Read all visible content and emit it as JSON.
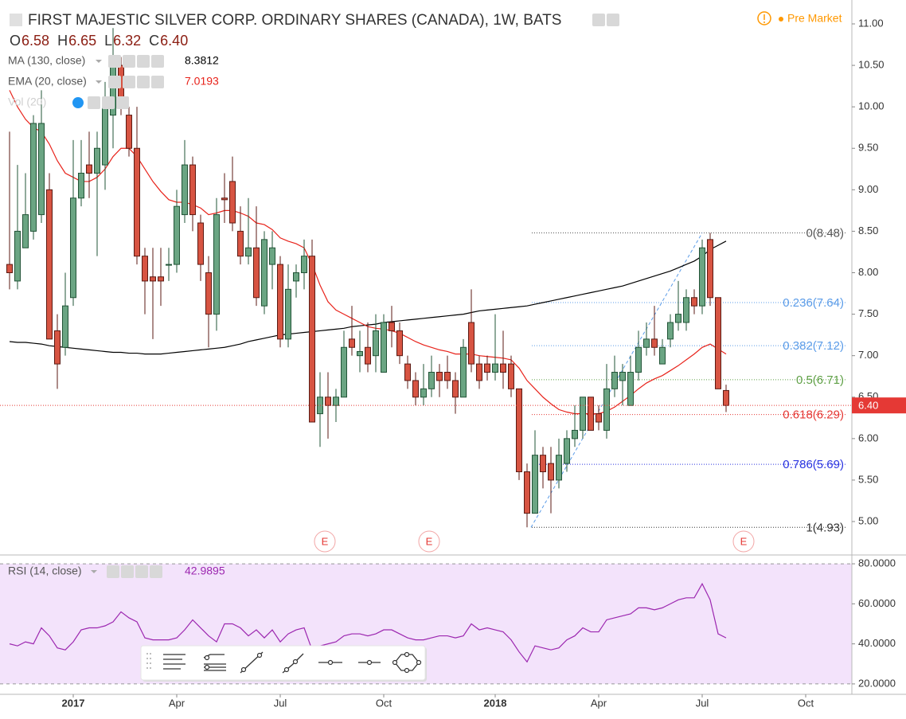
{
  "chart_data": [
    {
      "type": "candlestick",
      "title": "FIRST MAJESTIC SILVER CORP. ORDINARY SHARES (CANADA), 1W, BATS",
      "status": "Pre Market",
      "ohlc_header": [
        {
          "key": "O",
          "value": "6.58"
        },
        {
          "key": "H",
          "value": "6.65"
        },
        {
          "key": "L",
          "value": "6.32"
        },
        {
          "key": "C",
          "value": "6.40"
        }
      ],
      "volume_label": "Vol (20)",
      "earnings": [
        "E",
        "E",
        "E"
      ],
      "up_color": "#6ba583",
      "down_color": "#d75442",
      "categories": [
        null,
        null,
        null,
        null,
        null,
        null,
        null,
        null,
        "2017",
        null,
        null,
        null,
        null,
        null,
        null,
        null,
        null,
        null,
        null,
        null,
        null,
        "Apr",
        null,
        null,
        null,
        null,
        null,
        null,
        null,
        null,
        null,
        null,
        null,
        null,
        "Jul",
        null,
        null,
        null,
        null,
        null,
        null,
        null,
        null,
        null,
        null,
        null,
        null,
        "Oct",
        null,
        null,
        null,
        null,
        null,
        null,
        null,
        null,
        null,
        null,
        null,
        null,
        null,
        "2018",
        null,
        null,
        null,
        null,
        null,
        null,
        null,
        null,
        null,
        null,
        null,
        null,
        "Apr",
        null,
        null,
        null,
        null,
        null,
        null,
        null,
        null,
        null,
        null,
        null,
        null,
        "Jul",
        null,
        null,
        null,
        null,
        null,
        null,
        null,
        null,
        null,
        null,
        null,
        null,
        "Oct"
      ],
      "open": [
        8.1,
        7.9,
        8.3,
        8.5,
        8.7,
        9.0,
        7.3,
        7.1,
        7.7,
        8.9,
        9.3,
        9.2,
        9.3,
        9.9,
        10.5,
        9.9,
        9.5,
        8.2,
        7.95,
        7.95,
        8.1,
        8.1,
        8.7,
        9.3,
        8.6,
        8.0,
        7.5,
        8.9,
        9.1,
        8.5,
        8.2,
        8.3,
        7.6,
        8.1,
        8.1,
        7.2,
        7.9,
        8.0,
        8.2,
        6.3,
        6.5,
        6.4,
        6.5,
        7.2,
        7.0,
        7.1,
        7.0,
        6.8,
        7.4,
        7.3,
        6.9,
        6.7,
        6.5,
        6.6,
        6.8,
        6.8,
        6.7,
        6.5,
        7.4,
        6.9,
        6.9,
        6.8,
        6.9,
        6.9,
        6.6,
        5.6,
        5.1,
        5.8,
        5.7,
        5.5,
        5.7,
        6.0,
        6.1,
        6.5,
        6.3,
        6.1,
        6.6,
        6.7,
        6.4,
        6.8,
        7.1,
        7.2,
        6.9,
        7.2,
        7.4,
        7.4,
        7.7,
        7.6,
        8.4,
        7.7,
        6.58,
        null,
        null,
        null,
        null,
        null,
        null,
        null,
        null,
        null,
        null
      ],
      "high": [
        9.7,
        9.3,
        9.2,
        9.9,
        10.2,
        9.2,
        7.5,
        8.0,
        9.6,
        9.6,
        9.7,
        9.7,
        10.3,
        10.95,
        10.6,
        10.0,
        10.0,
        8.3,
        8.3,
        8.3,
        8.3,
        9.0,
        9.6,
        9.4,
        8.7,
        8.2,
        8.9,
        9.2,
        9.4,
        8.8,
        8.9,
        8.8,
        8.5,
        8.5,
        8.2,
        8.1,
        8.1,
        8.4,
        8.4,
        6.8,
        6.8,
        6.6,
        7.3,
        7.6,
        7.3,
        7.4,
        7.5,
        7.5,
        7.6,
        7.4,
        7.0,
        6.8,
        6.9,
        7.0,
        6.9,
        7.0,
        6.8,
        7.2,
        7.8,
        7.0,
        7.0,
        7.5,
        7.3,
        7.0,
        6.6,
        5.7,
        6.1,
        5.9,
        5.9,
        6.0,
        6.1,
        6.4,
        6.5,
        6.5,
        6.4,
        6.9,
        7.0,
        6.9,
        7.0,
        7.3,
        7.4,
        7.6,
        7.2,
        7.5,
        7.9,
        7.8,
        7.8,
        8.4,
        8.48,
        7.7,
        6.65,
        null,
        null,
        null,
        null,
        null,
        null,
        null,
        null,
        null,
        null
      ],
      "low": [
        7.8,
        7.8,
        8.3,
        8.4,
        8.6,
        7.2,
        6.6,
        7.0,
        7.6,
        8.8,
        8.9,
        8.2,
        9.0,
        9.5,
        9.9,
        9.4,
        8.1,
        7.5,
        7.2,
        7.6,
        7.9,
        8.0,
        8.6,
        8.5,
        7.9,
        7.1,
        7.3,
        8.6,
        8.5,
        8.1,
        8.1,
        7.6,
        7.5,
        7.8,
        7.1,
        7.1,
        7.7,
        7.8,
        6.2,
        5.9,
        6.0,
        6.2,
        6.5,
        7.0,
        6.8,
        6.8,
        6.8,
        6.8,
        7.1,
        6.9,
        6.6,
        6.4,
        6.4,
        6.5,
        6.5,
        6.6,
        6.3,
        6.5,
        6.8,
        6.6,
        6.7,
        6.7,
        6.6,
        6.5,
        5.5,
        4.93,
        5.1,
        5.4,
        5.1,
        5.4,
        5.6,
        5.9,
        6.0,
        6.1,
        6.1,
        6.0,
        6.5,
        6.4,
        6.4,
        6.7,
        7.0,
        7.0,
        6.9,
        7.1,
        7.3,
        7.3,
        7.5,
        7.5,
        7.6,
        6.6,
        6.32,
        null,
        null,
        null,
        null,
        null,
        null,
        null,
        null,
        null,
        null
      ],
      "close": [
        8.0,
        8.5,
        8.7,
        9.8,
        9.8,
        7.2,
        6.9,
        7.6,
        8.9,
        9.2,
        9.2,
        9.5,
        10.0,
        10.6,
        10.1,
        9.5,
        8.2,
        7.9,
        7.9,
        7.9,
        8.1,
        8.8,
        9.3,
        8.7,
        8.1,
        7.5,
        8.7,
        8.88,
        8.6,
        8.2,
        8.3,
        7.7,
        8.4,
        8.3,
        7.2,
        7.8,
        8.0,
        8.2,
        6.2,
        6.5,
        6.4,
        6.5,
        7.1,
        7.1,
        7.05,
        6.9,
        7.3,
        7.4,
        7.3,
        7.0,
        6.7,
        6.5,
        6.6,
        6.8,
        6.7,
        6.7,
        6.5,
        7.1,
        6.9,
        6.7,
        6.8,
        6.9,
        6.8,
        6.6,
        5.6,
        5.1,
        5.8,
        5.6,
        5.5,
        5.8,
        6.0,
        6.1,
        6.5,
        6.1,
        6.2,
        6.6,
        6.8,
        6.8,
        6.8,
        7.1,
        7.2,
        7.1,
        7.1,
        7.4,
        7.5,
        7.7,
        7.6,
        8.3,
        7.7,
        6.6,
        6.4,
        null,
        null,
        null,
        null,
        null,
        null,
        null,
        null,
        null,
        null
      ],
      "series": [
        {
          "name": "MA (130, close)",
          "color": "#000000",
          "values": [
            7.17,
            7.16,
            7.16,
            7.15,
            7.14,
            7.12,
            7.11,
            7.1,
            7.09,
            7.08,
            7.07,
            7.06,
            7.05,
            7.04,
            7.04,
            7.03,
            7.03,
            7.02,
            7.02,
            7.02,
            7.03,
            7.04,
            7.05,
            7.06,
            7.07,
            7.08,
            7.09,
            7.1,
            7.12,
            7.14,
            7.17,
            7.19,
            7.21,
            7.23,
            7.25,
            7.26,
            7.27,
            7.28,
            7.29,
            7.3,
            7.31,
            7.32,
            7.33,
            7.35,
            7.36,
            7.37,
            7.38,
            7.4,
            7.41,
            7.42,
            7.43,
            7.44,
            7.45,
            7.46,
            7.47,
            7.48,
            7.49,
            7.5,
            7.52,
            7.54,
            7.55,
            7.56,
            7.57,
            7.58,
            7.59,
            7.6,
            7.62,
            7.64,
            7.66,
            7.68,
            7.7,
            7.72,
            7.74,
            7.76,
            7.78,
            7.8,
            7.82,
            7.84,
            7.87,
            7.9,
            7.93,
            7.96,
            7.99,
            8.02,
            8.06,
            8.1,
            8.14,
            8.2,
            8.28,
            8.33,
            8.3812,
            null,
            null,
            null,
            null,
            null,
            null,
            null,
            null,
            null,
            null
          ]
        },
        {
          "name": "EMA (20, close)",
          "color": "#e8231b",
          "values": [
            10.2,
            10.0,
            9.85,
            9.75,
            9.7,
            9.55,
            9.35,
            9.2,
            9.15,
            9.1,
            9.1,
            9.15,
            9.25,
            9.4,
            9.5,
            9.5,
            9.4,
            9.25,
            9.1,
            8.98,
            8.88,
            8.85,
            8.85,
            8.82,
            8.78,
            8.7,
            8.72,
            8.75,
            8.75,
            8.72,
            8.68,
            8.6,
            8.58,
            8.52,
            8.42,
            8.38,
            8.35,
            8.3,
            8.1,
            7.85,
            7.65,
            7.55,
            7.5,
            7.45,
            7.4,
            7.35,
            7.33,
            7.32,
            7.3,
            7.27,
            7.22,
            7.17,
            7.13,
            7.1,
            7.07,
            7.05,
            7.02,
            7.02,
            7.02,
            7.0,
            6.99,
            6.98,
            6.97,
            6.95,
            6.85,
            6.7,
            6.6,
            6.5,
            6.42,
            6.35,
            6.32,
            6.3,
            6.3,
            6.3,
            6.3,
            6.33,
            6.38,
            6.45,
            6.52,
            6.6,
            6.67,
            6.72,
            6.76,
            6.82,
            6.88,
            6.95,
            7.02,
            7.1,
            7.14,
            7.08,
            7.0193,
            null,
            null,
            null,
            null,
            null,
            null,
            null,
            null,
            null,
            null
          ]
        }
      ],
      "fibonacci": [
        {
          "label": "0(8.48)",
          "value": 8.48,
          "color": "#555555"
        },
        {
          "label": "0.236(7.64)",
          "value": 7.64,
          "color": "#5b9ce8"
        },
        {
          "label": "0.382(7.12)",
          "value": 7.12,
          "color": "#5b9ce8"
        },
        {
          "label": "0.5(6.71)",
          "value": 6.71,
          "color": "#5fa046"
        },
        {
          "label": "0.618(6.29)",
          "value": 6.29,
          "color": "#e53935"
        },
        {
          "label": "0.786(5.69)",
          "value": 5.69,
          "color": "#2b35e0"
        },
        {
          "label": "1(4.93)",
          "value": 4.93,
          "color": "#333333"
        }
      ],
      "ylim": [
        4.597,
        11.288
      ],
      "yticks": [
        {
          "value": 5,
          "label": "5.00"
        },
        {
          "value": 5.5,
          "label": "5.50"
        },
        {
          "value": 6,
          "label": "6.00"
        },
        {
          "value": 6.5,
          "label": "6.50"
        },
        {
          "value": 7,
          "label": "7.00"
        },
        {
          "value": 7.5,
          "label": "7.50"
        },
        {
          "value": 8,
          "label": "8.00"
        },
        {
          "value": 8.5,
          "label": "8.50"
        },
        {
          "value": 9,
          "label": "9.00"
        },
        {
          "value": 9.5,
          "label": "9.50"
        },
        {
          "value": 10,
          "label": "10.00"
        },
        {
          "value": 10.5,
          "label": "10.50"
        },
        {
          "value": 11,
          "label": "11.00"
        }
      ]
    },
    {
      "type": "line",
      "series": [
        {
          "name": "RSI (14, close)",
          "color": "#9c27b0",
          "values": [
            40,
            39,
            41,
            40,
            48,
            44,
            38,
            37,
            41,
            47,
            48,
            48,
            49,
            51,
            56,
            53,
            51,
            43,
            42,
            42,
            42,
            43,
            47,
            52,
            48,
            44,
            41,
            50,
            50,
            48,
            44,
            47,
            43,
            47,
            41,
            45,
            47,
            48,
            37,
            39,
            40,
            41,
            44,
            45,
            45,
            44,
            45,
            47,
            47,
            45,
            43,
            42,
            42,
            43,
            44,
            44,
            43,
            44,
            50,
            47,
            48,
            47,
            46,
            42,
            36,
            31,
            39,
            38,
            37,
            38,
            42,
            44,
            48,
            46,
            46,
            52,
            53,
            54,
            55,
            58,
            58,
            57,
            58,
            60,
            62,
            63,
            63,
            70,
            62,
            45,
            42.9895,
            null,
            null,
            null,
            null,
            null,
            null,
            null,
            null,
            null,
            null
          ]
        }
      ],
      "band_color": "#f3e3fb",
      "ylim": [
        14.8,
        84.4
      ],
      "yticks": [
        {
          "value": 80,
          "label": "80.0000"
        },
        {
          "value": 60,
          "label": "60.0000"
        },
        {
          "value": 40,
          "label": "40.0000"
        },
        {
          "value": 20,
          "label": "20.0000"
        }
      ]
    }
  ]
}
